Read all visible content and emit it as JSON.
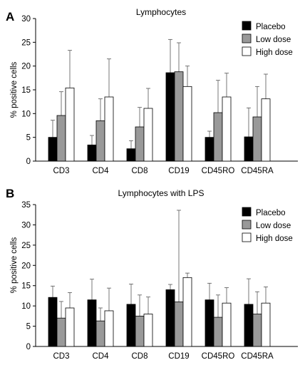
{
  "chart_data": [
    {
      "panel": "A",
      "type": "bar",
      "title": "Lymphocytes",
      "xlabel": "",
      "ylabel": "% positive cells",
      "ylim": [
        0,
        30
      ],
      "yticks": [
        "0",
        "5",
        "10",
        "15",
        "20",
        "25",
        "30"
      ],
      "categories": [
        "CD3",
        "CD4",
        "CD8",
        "CD19",
        "CD45RO",
        "CD45RA"
      ],
      "legend_position": "top-right",
      "grid": false,
      "series": [
        {
          "name": "Placebo",
          "color": "#000000",
          "values": [
            5.0,
            3.4,
            2.6,
            18.6,
            5.0,
            5.1
          ],
          "errors": [
            3.6,
            2.0,
            1.7,
            7.0,
            1.3,
            6.1
          ]
        },
        {
          "name": "Low dose",
          "color": "#999999",
          "values": [
            9.6,
            8.5,
            7.2,
            18.8,
            10.2,
            9.3
          ],
          "errors": [
            5.0,
            4.6,
            4.1,
            6.1,
            6.8,
            6.4
          ]
        },
        {
          "name": "High dose",
          "color": "#ffffff",
          "values": [
            15.4,
            13.5,
            11.1,
            15.7,
            13.5,
            13.1
          ],
          "errors": [
            7.9,
            8.0,
            4.2,
            4.3,
            5.0,
            5.2
          ]
        }
      ]
    },
    {
      "panel": "B",
      "type": "bar",
      "title": "Lymphocytes with LPS",
      "xlabel": "",
      "ylabel": "% positive cells",
      "ylim": [
        0,
        35
      ],
      "yticks": [
        "0",
        "5",
        "10",
        "15",
        "20",
        "25",
        "30",
        "35"
      ],
      "categories": [
        "CD3",
        "CD4",
        "CD8",
        "CD19",
        "CD45RO",
        "CD45RA"
      ],
      "legend_position": "top-right",
      "grid": false,
      "series": [
        {
          "name": "Placebo",
          "color": "#000000",
          "values": [
            12.1,
            11.5,
            10.4,
            14.0,
            11.5,
            10.4
          ],
          "errors": [
            2.8,
            5.1,
            5.0,
            1.3,
            4.1,
            6.3
          ]
        },
        {
          "name": "Low dose",
          "color": "#999999",
          "values": [
            7.0,
            6.3,
            7.5,
            11.0,
            7.2,
            8.0
          ],
          "errors": [
            4.1,
            3.2,
            5.2,
            22.6,
            5.5,
            5.5
          ]
        },
        {
          "name": "High dose",
          "color": "#ffffff",
          "values": [
            9.5,
            8.8,
            8.0,
            17.0,
            10.7,
            10.7
          ],
          "errors": [
            3.8,
            5.6,
            4.2,
            1.1,
            3.8,
            4.0
          ]
        }
      ]
    }
  ]
}
